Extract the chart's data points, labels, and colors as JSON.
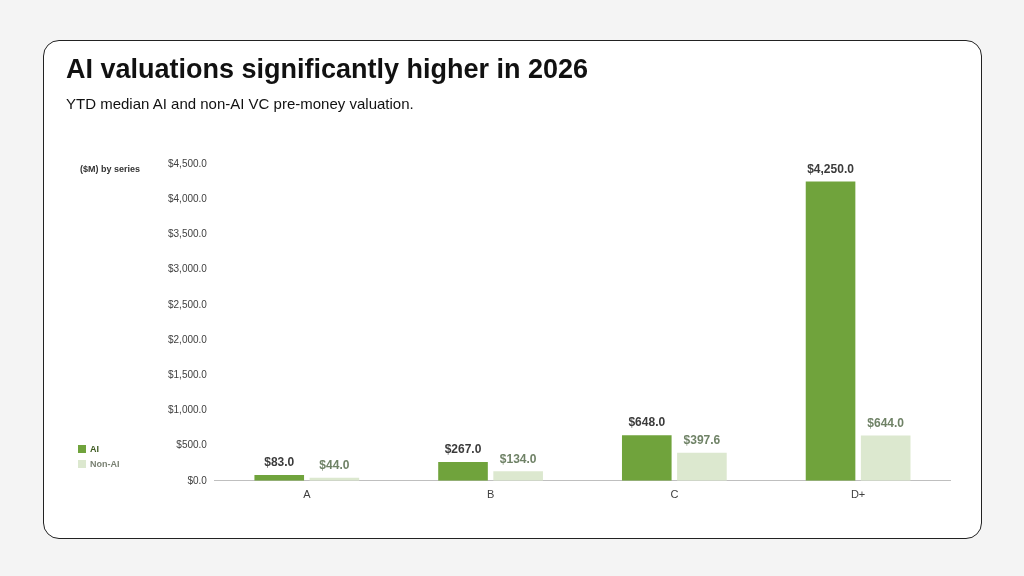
{
  "chart_data": {
    "type": "bar",
    "title": "AI valuations significantly higher in 2026",
    "subtitle": "YTD median AI and non-AI VC pre-money valuation.",
    "ylabel": "($M) by series",
    "categories": [
      "A",
      "B",
      "C",
      "D+"
    ],
    "series": [
      {
        "name": "AI",
        "color": "#70a33c",
        "values": [
          83.0,
          267.0,
          648.0,
          4250.0
        ],
        "value_labels": [
          "$83.0",
          "$267.0",
          "$648.0",
          "$4,250.0"
        ]
      },
      {
        "name": "Non-AI",
        "color": "#dce8cf",
        "values": [
          44.0,
          134.0,
          397.6,
          644.0
        ],
        "value_labels": [
          "$44.0",
          "$134.0",
          "$397.6",
          "$644.0"
        ]
      }
    ],
    "ylim": [
      0,
      4500
    ],
    "yticks": [
      {
        "value": 0,
        "label": "$0.0"
      },
      {
        "value": 500,
        "label": "$500.0"
      },
      {
        "value": 1000,
        "label": "$1,000.0"
      },
      {
        "value": 1500,
        "label": "$1,500.0"
      },
      {
        "value": 2000,
        "label": "$2,000.0"
      },
      {
        "value": 2500,
        "label": "$2,500.0"
      },
      {
        "value": 3000,
        "label": "$3,000.0"
      },
      {
        "value": 3500,
        "label": "$3,500.0"
      },
      {
        "value": 4000,
        "label": "$4,000.0"
      },
      {
        "value": 4500,
        "label": "$4,500.0"
      }
    ],
    "legend": "bottom left"
  }
}
